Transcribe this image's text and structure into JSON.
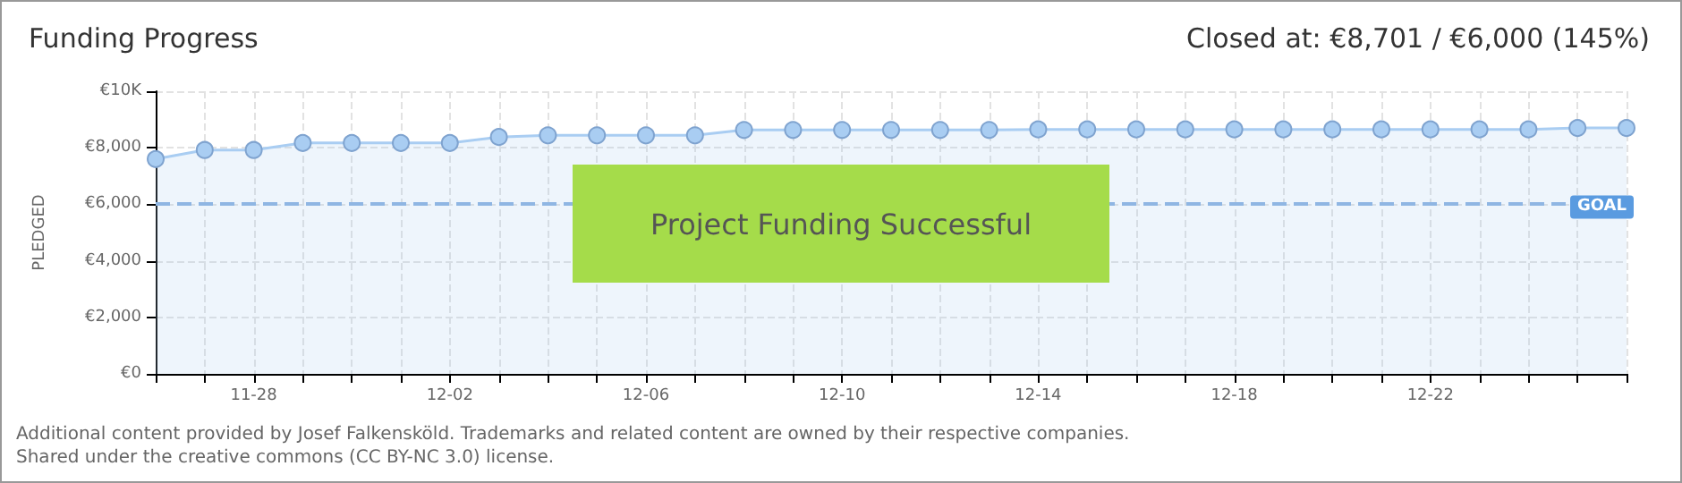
{
  "chart_data": {
    "type": "area",
    "title": "Funding Progress",
    "subtitle": "Closed at: €8,701 / €6,000 (145%)",
    "ylabel": "PLEDGED",
    "categories": [
      null,
      null,
      "11-28",
      null,
      null,
      null,
      "12-02",
      null,
      null,
      null,
      "12-06",
      null,
      null,
      null,
      "12-10",
      null,
      null,
      null,
      "12-14",
      null,
      null,
      null,
      "12-18",
      null,
      null,
      null,
      "12-22",
      null,
      null,
      null,
      null
    ],
    "series": [
      {
        "color": "#a9cdf2",
        "values": [
          7600,
          7920,
          7920,
          8170,
          8170,
          8170,
          8170,
          8380,
          8440,
          8440,
          8440,
          8440,
          8630,
          8630,
          8630,
          8630,
          8630,
          8630,
          8650,
          8650,
          8650,
          8650,
          8650,
          8650,
          8650,
          8650,
          8650,
          8650,
          8650,
          8700,
          8700
        ]
      }
    ],
    "ylim": [
      0,
      10000
    ],
    "yticks": [
      {
        "value": 0,
        "label": "€0"
      },
      {
        "value": 2000,
        "label": "€2,000"
      },
      {
        "value": 4000,
        "label": "€4,000"
      },
      {
        "value": 6000,
        "label": "€6,000"
      },
      {
        "value": 8000,
        "label": "€8,000"
      },
      {
        "value": 10000,
        "label": "€10K"
      }
    ],
    "ref_lines": [
      {
        "axis": "y",
        "value": 6000,
        "label": "GOAL",
        "color": "#8fb6e3",
        "line_style": "dashed"
      }
    ],
    "annotations": [
      "Project Funding Successful",
      "Additional content provided by Josef Falkensköld. Trademarks and related content are owned by their respective companies.",
      "Shared under the creative commons (CC BY-NC 3.0) license."
    ],
    "grid": true,
    "marker": "circle",
    "line_style": "solid"
  }
}
